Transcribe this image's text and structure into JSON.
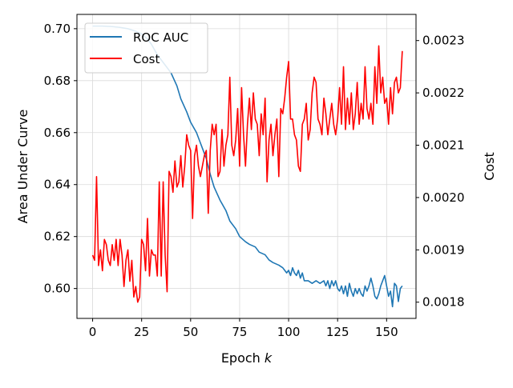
{
  "chart_data": {
    "type": "line",
    "title": "",
    "xlabel": "Epoch",
    "xlabel_var": "k",
    "ylabel_left": "Area Under Curve",
    "ylabel_right": "Cost",
    "xlim": [
      -8,
      165
    ],
    "ylim_left": [
      0.5885,
      0.7055
    ],
    "ylim_right": [
      0.001769,
      0.00235
    ],
    "xticks": [
      0,
      25,
      50,
      75,
      100,
      125,
      150
    ],
    "yticks_left": [
      0.6,
      0.62,
      0.64,
      0.66,
      0.68,
      0.7
    ],
    "yticks_left_labels": [
      "0.60",
      "0.62",
      "0.64",
      "0.66",
      "0.68",
      "0.70"
    ],
    "yticks_right": [
      0.0018,
      0.0019,
      0.002,
      0.0021,
      0.0022,
      0.0023
    ],
    "yticks_right_labels": [
      "0.0018",
      "0.0019",
      "0.0020",
      "0.0021",
      "0.0022",
      "0.0023"
    ],
    "grid": true,
    "legend_position": "top-left",
    "series": [
      {
        "name": "ROC AUC",
        "axis": "left",
        "color": "#1f77b4",
        "points": [
          [
            0,
            0.701
          ],
          [
            5,
            0.701
          ],
          [
            10,
            0.7008
          ],
          [
            14,
            0.7005
          ],
          [
            18,
            0.7
          ],
          [
            22,
            0.699
          ],
          [
            25,
            0.698
          ],
          [
            28,
            0.696
          ],
          [
            30,
            0.694
          ],
          [
            33,
            0.69
          ],
          [
            35,
            0.688
          ],
          [
            37,
            0.686
          ],
          [
            40,
            0.683
          ],
          [
            43,
            0.678
          ],
          [
            45,
            0.673
          ],
          [
            48,
            0.668
          ],
          [
            50,
            0.664
          ],
          [
            53,
            0.66
          ],
          [
            55,
            0.656
          ],
          [
            58,
            0.65
          ],
          [
            60,
            0.644
          ],
          [
            62,
            0.639
          ],
          [
            65,
            0.634
          ],
          [
            68,
            0.63
          ],
          [
            70,
            0.626
          ],
          [
            73,
            0.623
          ],
          [
            75,
            0.62
          ],
          [
            78,
            0.618
          ],
          [
            80,
            0.617
          ],
          [
            83,
            0.616
          ],
          [
            85,
            0.614
          ],
          [
            88,
            0.613
          ],
          [
            90,
            0.611
          ],
          [
            92,
            0.61
          ],
          [
            95,
            0.609
          ],
          [
            97,
            0.608
          ],
          [
            98,
            0.607
          ],
          [
            99,
            0.606
          ],
          [
            100,
            0.607
          ],
          [
            101,
            0.605
          ],
          [
            102,
            0.608
          ],
          [
            103,
            0.606
          ],
          [
            104,
            0.605
          ],
          [
            105,
            0.607
          ],
          [
            106,
            0.604
          ],
          [
            107,
            0.606
          ],
          [
            108,
            0.603
          ],
          [
            110,
            0.603
          ],
          [
            112,
            0.602
          ],
          [
            114,
            0.603
          ],
          [
            116,
            0.602
          ],
          [
            118,
            0.603
          ],
          [
            119,
            0.601
          ],
          [
            120,
            0.603
          ],
          [
            121,
            0.6
          ],
          [
            122,
            0.603
          ],
          [
            123,
            0.601
          ],
          [
            124,
            0.603
          ],
          [
            125,
            0.6
          ],
          [
            126,
            0.599
          ],
          [
            127,
            0.601
          ],
          [
            128,
            0.598
          ],
          [
            129,
            0.601
          ],
          [
            130,
            0.597
          ],
          [
            131,
            0.602
          ],
          [
            132,
            0.599
          ],
          [
            133,
            0.597
          ],
          [
            134,
            0.6
          ],
          [
            135,
            0.598
          ],
          [
            136,
            0.6
          ],
          [
            137,
            0.598
          ],
          [
            138,
            0.597
          ],
          [
            139,
            0.601
          ],
          [
            140,
            0.599
          ],
          [
            141,
            0.601
          ],
          [
            142,
            0.604
          ],
          [
            143,
            0.601
          ],
          [
            144,
            0.597
          ],
          [
            145,
            0.596
          ],
          [
            146,
            0.598
          ],
          [
            147,
            0.601
          ],
          [
            148,
            0.603
          ],
          [
            149,
            0.605
          ],
          [
            150,
            0.601
          ],
          [
            151,
            0.597
          ],
          [
            152,
            0.599
          ],
          [
            153,
            0.593
          ],
          [
            154,
            0.602
          ],
          [
            155,
            0.601
          ],
          [
            156,
            0.595
          ],
          [
            157,
            0.6
          ],
          [
            158,
            0.601
          ]
        ]
      },
      {
        "name": "Cost",
        "axis": "right",
        "color": "#ff0000",
        "points": [
          [
            0,
            0.00189
          ],
          [
            1,
            0.00188
          ],
          [
            2,
            0.00204
          ],
          [
            3,
            0.00187
          ],
          [
            4,
            0.0019
          ],
          [
            5,
            0.00186
          ],
          [
            6,
            0.00192
          ],
          [
            7,
            0.00191
          ],
          [
            8,
            0.00188
          ],
          [
            9,
            0.00187
          ],
          [
            10,
            0.00191
          ],
          [
            11,
            0.00188
          ],
          [
            12,
            0.00192
          ],
          [
            13,
            0.00187
          ],
          [
            14,
            0.00192
          ],
          [
            15,
            0.00189
          ],
          [
            16,
            0.00183
          ],
          [
            17,
            0.00188
          ],
          [
            18,
            0.0019
          ],
          [
            19,
            0.00184
          ],
          [
            20,
            0.00188
          ],
          [
            21,
            0.00181
          ],
          [
            22,
            0.00183
          ],
          [
            23,
            0.0018
          ],
          [
            24,
            0.00181
          ],
          [
            25,
            0.00192
          ],
          [
            26,
            0.00191
          ],
          [
            27,
            0.00186
          ],
          [
            28,
            0.00196
          ],
          [
            29,
            0.00185
          ],
          [
            30,
            0.0019
          ],
          [
            31,
            0.00189
          ],
          [
            32,
            0.00189
          ],
          [
            33,
            0.00185
          ],
          [
            34,
            0.00203
          ],
          [
            35,
            0.00185
          ],
          [
            36,
            0.00203
          ],
          [
            37,
            0.00189
          ],
          [
            38,
            0.00182
          ],
          [
            39,
            0.00205
          ],
          [
            40,
            0.00204
          ],
          [
            41,
            0.00201
          ],
          [
            42,
            0.00207
          ],
          [
            43,
            0.00202
          ],
          [
            44,
            0.00203
          ],
          [
            45,
            0.00208
          ],
          [
            46,
            0.00202
          ],
          [
            47,
            0.00206
          ],
          [
            48,
            0.00212
          ],
          [
            49,
            0.0021
          ],
          [
            50,
            0.00209
          ],
          [
            51,
            0.00196
          ],
          [
            52,
            0.00208
          ],
          [
            53,
            0.0021
          ],
          [
            54,
            0.00206
          ],
          [
            55,
            0.00204
          ],
          [
            56,
            0.00206
          ],
          [
            57,
            0.00208
          ],
          [
            58,
            0.00209
          ],
          [
            59,
            0.00197
          ],
          [
            60,
            0.00209
          ],
          [
            61,
            0.00214
          ],
          [
            62,
            0.00212
          ],
          [
            63,
            0.00214
          ],
          [
            64,
            0.00204
          ],
          [
            65,
            0.00205
          ],
          [
            66,
            0.00213
          ],
          [
            67,
            0.00206
          ],
          [
            68,
            0.0021
          ],
          [
            69,
            0.00212
          ],
          [
            70,
            0.00223
          ],
          [
            71,
            0.0021
          ],
          [
            72,
            0.00208
          ],
          [
            73,
            0.00211
          ],
          [
            74,
            0.00217
          ],
          [
            75,
            0.00206
          ],
          [
            76,
            0.00221
          ],
          [
            77,
            0.00212
          ],
          [
            78,
            0.00206
          ],
          [
            79,
            0.00214
          ],
          [
            80,
            0.00219
          ],
          [
            81,
            0.00213
          ],
          [
            82,
            0.0022
          ],
          [
            83,
            0.00215
          ],
          [
            84,
            0.00214
          ],
          [
            85,
            0.00208
          ],
          [
            86,
            0.00216
          ],
          [
            87,
            0.00212
          ],
          [
            88,
            0.00219
          ],
          [
            89,
            0.00203
          ],
          [
            90,
            0.00211
          ],
          [
            91,
            0.00214
          ],
          [
            92,
            0.00208
          ],
          [
            93,
            0.00212
          ],
          [
            94,
            0.00215
          ],
          [
            95,
            0.00204
          ],
          [
            96,
            0.00217
          ],
          [
            97,
            0.00216
          ],
          [
            98,
            0.00219
          ],
          [
            99,
            0.00223
          ],
          [
            100,
            0.00226
          ],
          [
            101,
            0.00215
          ],
          [
            102,
            0.00215
          ],
          [
            103,
            0.00212
          ],
          [
            104,
            0.00211
          ],
          [
            105,
            0.00206
          ],
          [
            106,
            0.00205
          ],
          [
            107,
            0.00214
          ],
          [
            108,
            0.00215
          ],
          [
            109,
            0.00218
          ],
          [
            110,
            0.00211
          ],
          [
            111,
            0.00213
          ],
          [
            112,
            0.0022
          ],
          [
            113,
            0.00223
          ],
          [
            114,
            0.00222
          ],
          [
            115,
            0.00215
          ],
          [
            116,
            0.00214
          ],
          [
            117,
            0.00212
          ],
          [
            118,
            0.00219
          ],
          [
            119,
            0.00216
          ],
          [
            120,
            0.00212
          ],
          [
            121,
            0.00215
          ],
          [
            122,
            0.00218
          ],
          [
            123,
            0.00214
          ],
          [
            124,
            0.00212
          ],
          [
            125,
            0.00215
          ],
          [
            126,
            0.00221
          ],
          [
            127,
            0.00214
          ],
          [
            128,
            0.00225
          ],
          [
            129,
            0.00213
          ],
          [
            130,
            0.00219
          ],
          [
            131,
            0.00214
          ],
          [
            132,
            0.0022
          ],
          [
            133,
            0.00213
          ],
          [
            134,
            0.00216
          ],
          [
            135,
            0.00222
          ],
          [
            136,
            0.00214
          ],
          [
            137,
            0.00218
          ],
          [
            138,
            0.00215
          ],
          [
            139,
            0.00225
          ],
          [
            140,
            0.00217
          ],
          [
            141,
            0.00215
          ],
          [
            142,
            0.00218
          ],
          [
            143,
            0.00214
          ],
          [
            144,
            0.00225
          ],
          [
            145,
            0.00218
          ],
          [
            146,
            0.00229
          ],
          [
            147,
            0.0022
          ],
          [
            148,
            0.00223
          ],
          [
            149,
            0.00218
          ],
          [
            150,
            0.00219
          ],
          [
            151,
            0.00214
          ],
          [
            152,
            0.00221
          ],
          [
            153,
            0.00216
          ],
          [
            154,
            0.00222
          ],
          [
            155,
            0.00223
          ],
          [
            156,
            0.0022
          ],
          [
            157,
            0.00221
          ],
          [
            158,
            0.00228
          ]
        ]
      }
    ]
  }
}
